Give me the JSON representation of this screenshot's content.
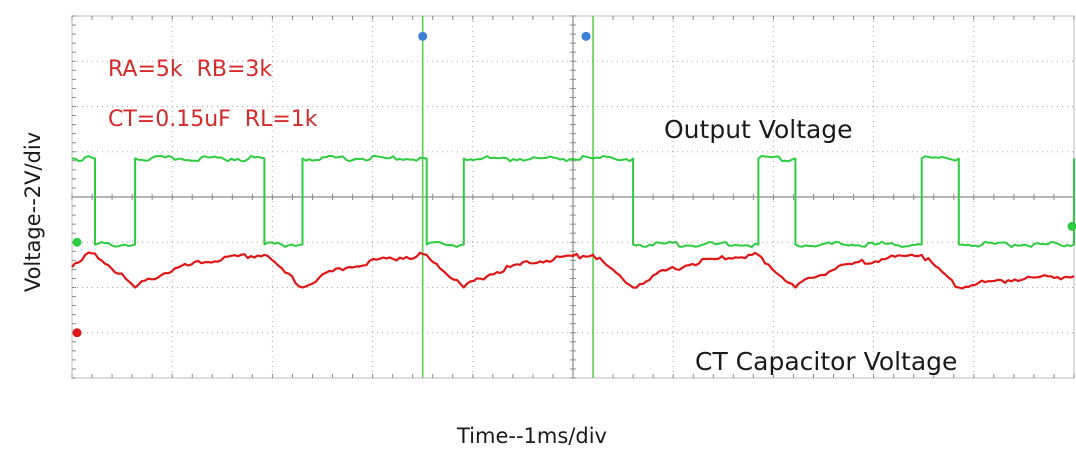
{
  "chart_data": {
    "type": "line",
    "title": "",
    "xlabel": "Time--1ms/div",
    "ylabel": "Voltage--2V/div",
    "x_unit": "div",
    "y_unit": "div",
    "xlim": [
      0,
      10
    ],
    "ylim": [
      0,
      8
    ],
    "grid": true,
    "annotations": {
      "params_line1": "RA=5k  RB=3k",
      "params_line2": "CT=0.15uF  RL=1k",
      "output_label": "Output Voltage",
      "ct_label": "CT Capacitor Voltage"
    },
    "colors": {
      "output": "#2ecc40",
      "ct": "#e01515",
      "params": "#d42a2a",
      "grid": "#a9a9a9",
      "cursor": "#5fcf4f",
      "marker": "#3b7fd6"
    },
    "cursors_x": [
      3.5,
      5.2
    ],
    "markers": [
      {
        "x": 3.5,
        "y": 7.55,
        "color": "#3b7fd6"
      },
      {
        "x": 5.13,
        "y": 7.55,
        "color": "#3b7fd6"
      },
      {
        "x": 0.05,
        "y": 3.0,
        "color": "#2ecc40"
      },
      {
        "x": 9.98,
        "y": 3.35,
        "color": "#2ecc40"
      },
      {
        "x": 0.05,
        "y": 1.0,
        "color": "#e01515"
      }
    ],
    "series": [
      {
        "key": "output",
        "x": [
          0.0,
          0.23,
          0.23,
          0.63,
          0.63,
          1.92,
          1.92,
          2.3,
          2.3,
          3.54,
          3.54,
          3.91,
          3.91,
          5.2,
          5.2,
          5.6,
          5.6,
          6.85,
          6.85,
          7.22,
          7.22,
          8.48,
          8.48,
          8.85,
          8.85,
          10.0,
          10.0
        ],
        "y": [
          4.85,
          4.85,
          2.95,
          2.95,
          4.85,
          4.85,
          2.95,
          2.95,
          4.85,
          4.85,
          2.95,
          2.95,
          4.85,
          4.85,
          4.85,
          4.85,
          2.95,
          2.95,
          4.85,
          4.85,
          2.95,
          2.95,
          4.85,
          4.85,
          2.95,
          2.95,
          4.85
        ]
      },
      {
        "key": "ct",
        "x": [
          0.0,
          0.23,
          0.63,
          1.92,
          2.3,
          3.54,
          3.91,
          5.2,
          5.6,
          6.85,
          7.22,
          8.48,
          8.85,
          10.0
        ],
        "y": [
          2.45,
          2.75,
          2.0,
          2.72,
          2.0,
          2.72,
          2.0,
          2.72,
          2.0,
          2.72,
          2.0,
          2.72,
          2.0,
          2.25
        ]
      }
    ]
  }
}
